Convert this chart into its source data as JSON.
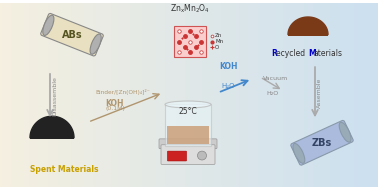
{
  "bg_left_color": "#f5f0e0",
  "bg_right_color": "#cce0f0",
  "labels": {
    "ABs": "ABs",
    "ZBs": "ZBs",
    "spent": "Spent Materials",
    "recycled": "Recycled Materials",
    "disassemble": "Disassemble",
    "assemble": "Assemble",
    "binder": "Binder/[Zn(OH)₄]²⁻",
    "KOH_left": "KOH",
    "KOH_0p1": "(0.1M)",
    "temp": "25°C",
    "KOH_right": "KOH",
    "H2O_right": "H₂O",
    "vacuum": "Vacuum",
    "H2O_low": "H₂O",
    "ZnxMnO": "ZnₓMn₂O₄",
    "Zn_label": "Zn",
    "Mn_label": "Mn",
    "O_label": "O"
  },
  "colors": {
    "spent_label": "#c8a000",
    "recycled_R": "#0000cc",
    "recycled_M": "#0000cc",
    "recycled_rest": "#333333",
    "binder_text": "#b0956e",
    "KOH_text": "#b0956e",
    "KOH_right_text": "#4488cc",
    "H2O_text": "#4488cc",
    "vacuum_text": "#888888",
    "H2O_low_text": "#888888",
    "arrow_down": "#aaaaaa",
    "arrow_binder": "#b0956e",
    "arrow_KOH_right": "#4488cc",
    "arrow_vacuum": "#aaaaaa",
    "crystal_red": "#cc3333",
    "crystal_pink": "#ffaaaa",
    "crystal_white": "#ffffff",
    "battery_body": "#e8e0c0",
    "battery_cap": "#b0b0b0",
    "ZBs_body": "#aabbdd",
    "disassemble_text": "#888888",
    "assemble_text": "#888888"
  }
}
